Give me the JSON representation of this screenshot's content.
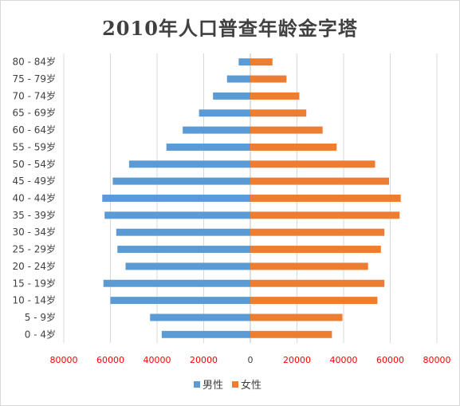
{
  "chart_data": {
    "type": "bar",
    "orientation": "horizontal",
    "title": "2010年人口普查年龄金字塔",
    "categories": [
      "0 - 4岁",
      "5 - 9岁",
      "10 - 14岁",
      "15 - 19岁",
      "20 - 24岁",
      "25 - 29岁",
      "30 - 34岁",
      "35 - 39岁",
      "40 - 44岁",
      "45 - 49岁",
      "50 - 54岁",
      "55 - 59岁",
      "60 - 64岁",
      "65 - 69岁",
      "70 - 74岁",
      "75 - 79岁",
      "80 - 84岁"
    ],
    "series": [
      {
        "name": "男性",
        "color": "#5b9bd5",
        "values": [
          -38000,
          -43000,
          -60000,
          -63000,
          -53500,
          -57000,
          -57500,
          -62500,
          -63500,
          -59000,
          -52000,
          -36000,
          -29000,
          -22000,
          -16000,
          -10000,
          -5000
        ]
      },
      {
        "name": "女性",
        "color": "#ed7d31",
        "values": [
          35000,
          39500,
          54500,
          57500,
          50500,
          56000,
          57500,
          64000,
          64500,
          59500,
          53500,
          37000,
          31000,
          24000,
          21000,
          15500,
          9500
        ]
      }
    ],
    "xlim": [
      -80000,
      80000
    ],
    "x_ticks": [
      -80000,
      -60000,
      -40000,
      -20000,
      0,
      20000,
      40000,
      60000,
      80000
    ],
    "x_tick_labels": [
      "80000",
      "60000",
      "40000",
      "20000",
      "0",
      "20000",
      "40000",
      "60000",
      "80000"
    ],
    "x_tick_color": "#ff0000",
    "grid": true,
    "legend_position": "bottom"
  }
}
